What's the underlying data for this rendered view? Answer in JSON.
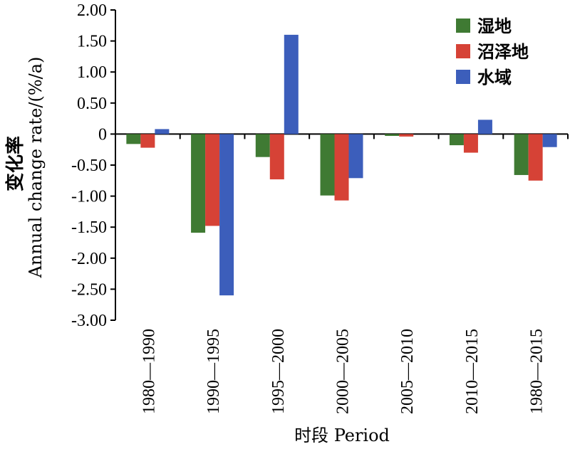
{
  "chart_data": {
    "type": "bar",
    "categories": [
      "1980—1990",
      "1990—1995",
      "1995—2000",
      "2000—2005",
      "2005—2010",
      "2010—2015",
      "1980—2015"
    ],
    "series": [
      {
        "name": "湿地",
        "color": "#3f7a33",
        "values": [
          -0.16,
          -1.59,
          -0.37,
          -0.99,
          -0.03,
          -0.18,
          -0.66
        ]
      },
      {
        "name": "沼泽地",
        "color": "#d64236",
        "values": [
          -0.22,
          -1.48,
          -0.73,
          -1.07,
          -0.04,
          -0.3,
          -0.75
        ]
      },
      {
        "name": "水域",
        "color": "#3c5ebb",
        "values": [
          0.08,
          -2.6,
          1.6,
          -0.71,
          0.0,
          0.23,
          -0.21
        ]
      }
    ],
    "ylim": [
      -3.0,
      2.0
    ],
    "yticks": [
      "2.00",
      "1.50",
      "1.00",
      "0.50",
      "0",
      "-0.50",
      "-1.00",
      "-1.50",
      "-2.00",
      "-2.50",
      "-3.00"
    ],
    "ylabel_cn": "变化率",
    "ylabel_en": "Annual change rate/(%/a)",
    "xlabel": "时段 Period",
    "legend_position": "top-right",
    "grid": false
  }
}
